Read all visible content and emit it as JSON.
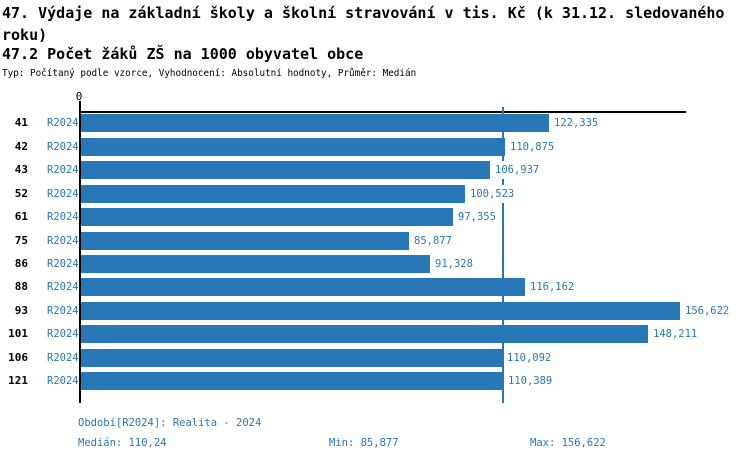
{
  "header": {
    "title": "47. Výdaje na základní školy a školní stravování v tis. Kč (k 31.12. sledovaného roku)",
    "indicator_title": "47.2 Počet žáků ZŠ na 1000 obyvatel obce",
    "meta": "Typ: Počítaný podle vzorce, Vyhodnocení: Absolutní hodnoty, Průměr: Medián"
  },
  "colors": {
    "bar": "#2878b8",
    "text_blue": "#2878b8",
    "axis": "#000000"
  },
  "chart_data": {
    "type": "bar",
    "orientation": "horizontal",
    "title": "47.2 Počet žáků ZŠ na 1000 obyvatel obce",
    "xlabel": "",
    "ylabel": "",
    "x_axis": {
      "zero_label": "0",
      "xlim": [
        0,
        158.2
      ],
      "grid": false
    },
    "categories": [
      "41",
      "42",
      "43",
      "52",
      "61",
      "75",
      "86",
      "88",
      "93",
      "101",
      "106",
      "121"
    ],
    "series": [
      {
        "name": "R2024",
        "values": [
          122.335,
          110.875,
          106.937,
          100.523,
          97.355,
          85.877,
          91.328,
          116.162,
          156.622,
          148.211,
          110.092,
          110.389
        ],
        "value_labels": [
          "122,335",
          "110,875",
          "106,937",
          "100,523",
          "97,355",
          "85,877",
          "91,328",
          "116,162",
          "156,622",
          "148,211",
          "110,092",
          "110,389"
        ]
      }
    ],
    "median_value": 110.24,
    "min_value": 85.877,
    "max_value": 156.622,
    "legend_position": "none"
  },
  "footer": {
    "period": "Období[R2024]: Realita - 2024",
    "median": "Medián: 110,24",
    "min": "Min: 85,877",
    "max": "Max: 156,622"
  }
}
